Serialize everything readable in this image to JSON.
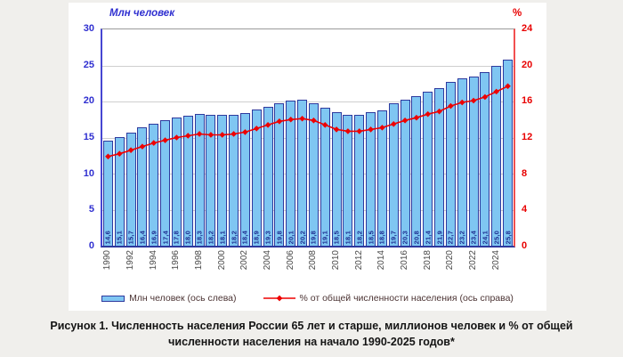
{
  "colors": {
    "page_bg": "#f0efec",
    "panel_bg": "#ffffff",
    "bar_fill": "#7fc6f2",
    "bar_border": "#2e3a9e",
    "bar_label": "#1d2c8f",
    "line": "#ee0000",
    "left_axis_text": "#2f2fd0",
    "right_axis_text": "#e80000",
    "grid": "#cfcfcf",
    "year_label": "#4a4a4a",
    "legend_text": "#4c3434",
    "caption_text": "#141414"
  },
  "chart_data": {
    "type": "combo",
    "title": "Численность населения России 65 лет и старше, миллионов человек и % от общей численности населения на начало 1990-2025 годов",
    "categories": [
      "1990",
      "1991",
      "1992",
      "1993",
      "1994",
      "1995",
      "1996",
      "1997",
      "1998",
      "1999",
      "2000",
      "2001",
      "2002",
      "2003",
      "2004",
      "2005",
      "2006",
      "2007",
      "2008",
      "2009",
      "2010",
      "2011",
      "2012",
      "2013",
      "2014",
      "2015",
      "2016",
      "2017",
      "2018",
      "2019",
      "2020",
      "2021",
      "2022",
      "2023",
      "2024",
      "2025"
    ],
    "x_tick_labels": [
      "1990",
      "1992",
      "1994",
      "1996",
      "1998",
      "2000",
      "2002",
      "2004",
      "2006",
      "2008",
      "2010",
      "2012",
      "2014",
      "2016",
      "2018",
      "2020",
      "2022",
      "2024"
    ],
    "series": [
      {
        "name": "Млн человек (ось слева)",
        "type": "bar",
        "axis": "left",
        "values": [
          14.6,
          15.1,
          15.7,
          16.4,
          16.9,
          17.4,
          17.8,
          18.0,
          18.3,
          18.2,
          18.1,
          18.2,
          18.4,
          18.9,
          19.3,
          19.8,
          20.1,
          20.2,
          19.8,
          19.1,
          18.5,
          18.1,
          18.2,
          18.5,
          18.8,
          19.7,
          20.3,
          20.8,
          21.4,
          21.9,
          22.7,
          23.2,
          23.4,
          24.1,
          25.0,
          25.8
        ],
        "data_labels": [
          "14,6",
          "15,1",
          "15,7",
          "16,4",
          "16,9",
          "17,4",
          "17,8",
          "18,0",
          "18,3",
          "18,2",
          "18,1",
          "18,2",
          "18,4",
          "18,9",
          "19,3",
          "19,8",
          "20,1",
          "20,2",
          "19,8",
          "19,1",
          "18,5",
          "18,1",
          "18,2",
          "18,5",
          "18,8",
          "19,7",
          "20,3",
          "20,8",
          "21,4",
          "21,9",
          "22,7",
          "23,2",
          "23,4",
          "24,1",
          "25,0",
          "25,8"
        ]
      },
      {
        "name": "% от общей численности населения (ось справа)",
        "type": "line",
        "axis": "right",
        "values": [
          9.9,
          10.2,
          10.6,
          11.0,
          11.4,
          11.7,
          12.0,
          12.2,
          12.4,
          12.3,
          12.3,
          12.4,
          12.6,
          13.0,
          13.4,
          13.8,
          14.0,
          14.1,
          13.9,
          13.4,
          12.9,
          12.7,
          12.7,
          12.9,
          13.1,
          13.5,
          13.9,
          14.2,
          14.6,
          14.9,
          15.5,
          15.9,
          16.1,
          16.5,
          17.1,
          17.7
        ]
      }
    ],
    "left_axis": {
      "label": "Млн человек",
      "min": 0,
      "max": 30,
      "ticks": [
        0,
        5,
        10,
        15,
        20,
        25,
        30
      ]
    },
    "right_axis": {
      "label": "%",
      "min": 0,
      "max": 24,
      "ticks": [
        0,
        4,
        8,
        12,
        16,
        20,
        24
      ]
    },
    "grid": true,
    "legend_position": "bottom"
  },
  "legend": {
    "bar_label": "Млн человек (ось слева)",
    "line_label": "% от общей численности населения (ось справа)"
  },
  "caption": {
    "line1": "Рисунок 1. Численность населения России 65 лет и старше, миллионов человек и % от общей",
    "line2": "численности населения на начало 1990-2025 годов*"
  }
}
